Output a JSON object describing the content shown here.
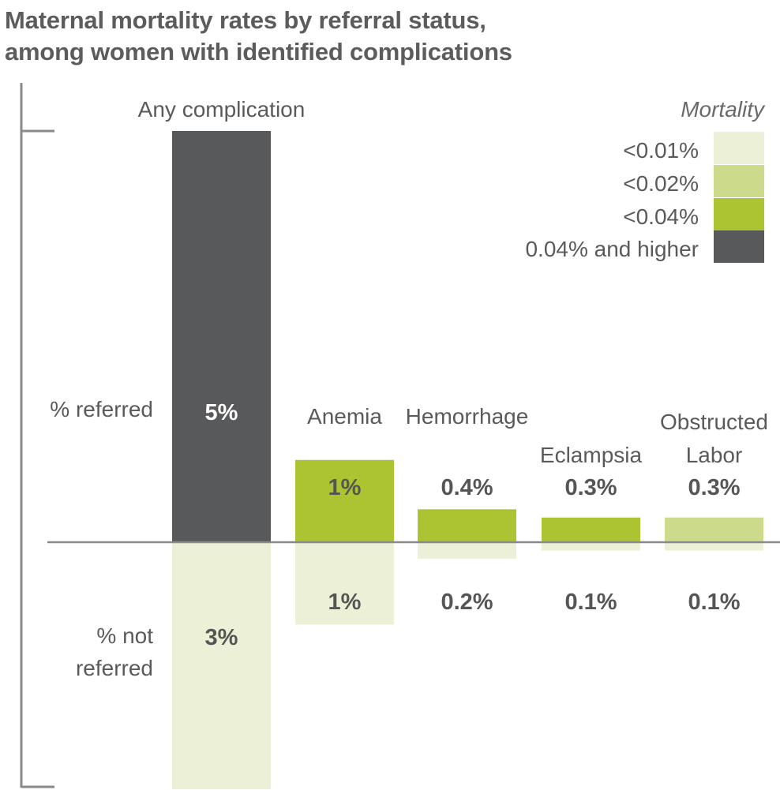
{
  "chart_data": {
    "type": "bar",
    "title": "Maternal mortality rates by referral status,\namong women with identified complications",
    "categories": [
      [
        "Any complication"
      ],
      [
        "Anemia"
      ],
      [
        "Hemorrhage"
      ],
      [
        "Eclampsia"
      ],
      [
        "Obstructed",
        "Labor"
      ]
    ],
    "series": [
      {
        "name": "% referred",
        "values": [
          5,
          1,
          0.4,
          0.3,
          0.3
        ],
        "labels": [
          "5%",
          "1%",
          "0.4%",
          "0.3%",
          "0.3%"
        ],
        "mortality_class": [
          3,
          2,
          2,
          2,
          1
        ]
      },
      {
        "name": "% not referred",
        "values": [
          3,
          1,
          0.2,
          0.1,
          0.1
        ],
        "labels": [
          "3%",
          "1%",
          "0.2%",
          "0.1%",
          "0.1%"
        ],
        "mortality_class": [
          0,
          0,
          0,
          0,
          0
        ]
      }
    ],
    "legend": {
      "title": "Mortality",
      "entries": [
        "<0.01%",
        "<0.02%",
        "<0.04%",
        "0.04% and higher"
      ],
      "colors": [
        "#ebf0d6",
        "#ccda8c",
        "#acc432",
        "#58595b"
      ],
      "placement": "top-right"
    }
  }
}
